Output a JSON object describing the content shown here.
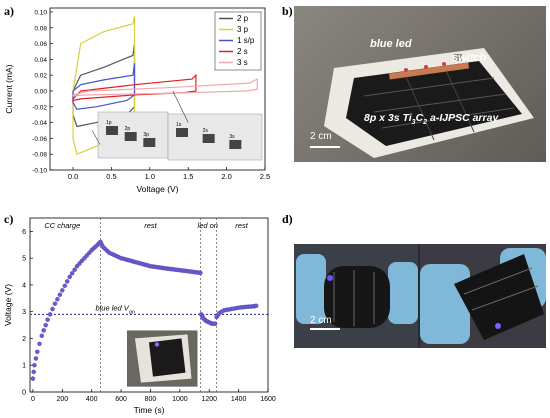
{
  "panels": {
    "a": "a)",
    "b": "b)",
    "c": "c)",
    "d": "d)"
  },
  "chart_data": [
    {
      "type": "line",
      "panel": "a",
      "xlabel": "Voltage (V)",
      "ylabel": "Current (mA)",
      "xlim": [
        -0.3,
        2.5
      ],
      "ylim": [
        -0.1,
        0.105
      ],
      "xticks": [
        "0.0",
        "0.5",
        "1.0",
        "1.5",
        "2.0",
        "2.5"
      ],
      "xtick_values": [
        0.0,
        0.5,
        1.0,
        1.5,
        2.0,
        2.5
      ],
      "yticks": [
        "-0.10",
        "-0.08",
        "-0.06",
        "-0.04",
        "-0.02",
        "0.00",
        "0.02",
        "0.04",
        "0.06",
        "0.08",
        "0.10"
      ],
      "ytick_values": [
        -0.1,
        -0.08,
        -0.06,
        -0.04,
        -0.02,
        0.0,
        0.02,
        0.04,
        0.06,
        0.08,
        0.1
      ],
      "legend_position": "top-right",
      "series": [
        {
          "name": "2 p",
          "color": "#555555",
          "vmax": 0.8,
          "top": [
            [
              0.0,
              0.0
            ],
            [
              0.1,
              0.02
            ],
            [
              0.4,
              0.03
            ],
            [
              0.78,
              0.045
            ],
            [
              0.8,
              0.06
            ]
          ],
          "bottom": [
            [
              0.8,
              -0.02
            ],
            [
              0.7,
              -0.03
            ],
            [
              0.3,
              -0.04
            ],
            [
              0.05,
              -0.045
            ],
            [
              0.0,
              -0.03
            ]
          ]
        },
        {
          "name": "3 p",
          "color": "#d8d040",
          "vmax": 0.8,
          "top": [
            [
              0.0,
              0.0
            ],
            [
              0.1,
              0.06
            ],
            [
              0.4,
              0.075
            ],
            [
              0.78,
              0.085
            ],
            [
              0.8,
              0.095
            ]
          ],
          "bottom": [
            [
              0.8,
              -0.03
            ],
            [
              0.7,
              -0.05
            ],
            [
              0.3,
              -0.07
            ],
            [
              0.05,
              -0.08
            ],
            [
              0.0,
              -0.06
            ]
          ]
        },
        {
          "name": "1 s/p",
          "color": "#4455cc",
          "vmax": 0.8,
          "top": [
            [
              0.0,
              0.0
            ],
            [
              0.1,
              0.008
            ],
            [
              0.4,
              0.014
            ],
            [
              0.78,
              0.02
            ],
            [
              0.8,
              0.035
            ]
          ],
          "bottom": [
            [
              0.8,
              -0.005
            ],
            [
              0.7,
              -0.012
            ],
            [
              0.3,
              -0.02
            ],
            [
              0.05,
              -0.023
            ],
            [
              0.0,
              -0.015
            ]
          ]
        },
        {
          "name": "2 s",
          "color": "#e02020",
          "vmax": 1.6,
          "top": [
            [
              0.0,
              -0.01
            ],
            [
              0.1,
              0.0
            ],
            [
              0.8,
              0.008
            ],
            [
              1.55,
              0.015
            ],
            [
              1.6,
              0.02
            ]
          ],
          "bottom": [
            [
              1.6,
              0.0
            ],
            [
              1.45,
              -0.002
            ],
            [
              0.8,
              -0.005
            ],
            [
              0.1,
              -0.01
            ],
            [
              0.0,
              -0.012
            ]
          ]
        },
        {
          "name": "3 s",
          "color": "#f0a8b0",
          "vmax": 2.4,
          "top": [
            [
              0.0,
              -0.005
            ],
            [
              0.2,
              0.0
            ],
            [
              1.2,
              0.004
            ],
            [
              2.3,
              0.01
            ],
            [
              2.4,
              0.015
            ]
          ],
          "bottom": [
            [
              2.4,
              0.002
            ],
            [
              2.25,
              0.0
            ],
            [
              1.2,
              -0.003
            ],
            [
              0.2,
              -0.005
            ],
            [
              0.0,
              -0.006
            ]
          ]
        }
      ],
      "insets": [
        {
          "labels": [
            "1p",
            "2p",
            "3p"
          ]
        },
        {
          "labels": [
            "1s",
            "2s",
            "3s"
          ]
        }
      ]
    },
    {
      "type": "scatter",
      "panel": "c",
      "xlabel": "Time (s)",
      "ylabel": "Voltage (V)",
      "xlim": [
        -20,
        1600
      ],
      "ylim": [
        0,
        6.5
      ],
      "xticks": [
        "0",
        "200",
        "400",
        "600",
        "800",
        "1000",
        "1200",
        "1400",
        "1600"
      ],
      "xtick_values": [
        0,
        200,
        400,
        600,
        800,
        1000,
        1200,
        1400,
        1600
      ],
      "yticks": [
        "0",
        "1",
        "2",
        "3",
        "4",
        "5",
        "6"
      ],
      "ytick_values": [
        0,
        1,
        2,
        3,
        4,
        5,
        6
      ],
      "series_color": "#6a5acd",
      "segments": [
        {
          "label": "CC charge",
          "x": [
            0,
            10,
            30,
            60,
            100,
            150,
            200,
            250,
            300,
            350,
            400,
            440,
            460
          ],
          "y": [
            0.5,
            1.0,
            1.5,
            2.1,
            2.7,
            3.3,
            3.8,
            4.3,
            4.7,
            5.0,
            5.3,
            5.5,
            5.6
          ]
        },
        {
          "label": "rest",
          "x": [
            460,
            480,
            520,
            600,
            700,
            800,
            900,
            1000,
            1100,
            1140
          ],
          "y": [
            5.6,
            5.4,
            5.2,
            5.0,
            4.85,
            4.7,
            4.62,
            4.55,
            4.48,
            4.45
          ]
        },
        {
          "label": "led on",
          "x": [
            1145,
            1160,
            1180,
            1200,
            1220,
            1240
          ],
          "y": [
            2.9,
            2.75,
            2.65,
            2.6,
            2.55,
            2.55
          ]
        },
        {
          "label": "rest",
          "x": [
            1250,
            1270,
            1300,
            1350,
            1400,
            1450,
            1500,
            1520
          ],
          "y": [
            2.8,
            2.95,
            3.05,
            3.1,
            3.15,
            3.18,
            3.2,
            3.22
          ]
        }
      ],
      "phase_dividers": [
        460,
        1140,
        1250
      ],
      "phase_labels": [
        {
          "text": "CC charge",
          "x": 200
        },
        {
          "text": "rest",
          "x": 800
        },
        {
          "text": "led on",
          "x": 1190
        },
        {
          "text": "rest",
          "x": 1420
        }
      ],
      "reference_line": {
        "y": 2.9,
        "label": "blue led V",
        "sub": "on"
      }
    }
  ],
  "photo_b": {
    "label_led": "blue led",
    "label_switch": "switch",
    "label_array_pre": "8p x 3s Ti",
    "label_array_sub1": "3",
    "label_array_mid": "C",
    "label_array_sub2": "2",
    "label_array_post": " a-IJPSC array",
    "scale": "2 cm"
  },
  "photo_d": {
    "scale": "2 cm"
  }
}
